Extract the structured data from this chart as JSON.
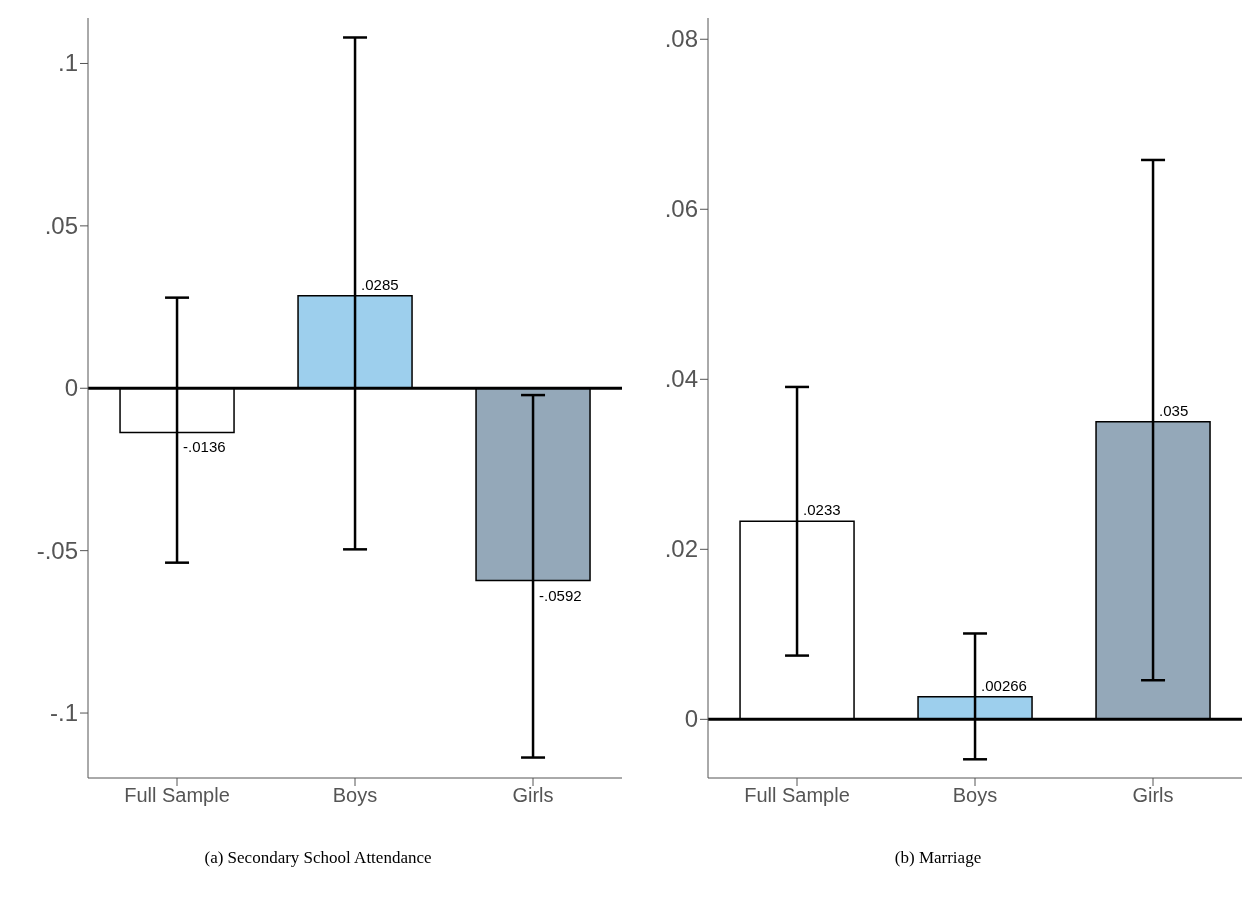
{
  "chart_data": [
    {
      "type": "bar",
      "title": "(a) Secondary School Attendance",
      "categories": [
        "Full Sample",
        "Boys",
        "Girls"
      ],
      "values": [
        -0.0136,
        0.0285,
        -0.0592
      ],
      "colors": [
        "#ffffff",
        "#9dcfed",
        "#94a8b9"
      ],
      "errors": [
        [
          -0.0537,
          0.0279
        ],
        [
          -0.0496,
          0.108
        ],
        [
          -0.1137,
          -0.0021
        ]
      ],
      "value_labels": [
        "-.0136",
        ".0285",
        "-.0592"
      ],
      "ylim": [
        -0.12,
        0.114
      ],
      "yticks": [
        {
          "value": -0.1,
          "label": "-.1"
        },
        {
          "value": -0.05,
          "label": "-.05"
        },
        0,
        {
          "value": 0.05,
          "label": ".05"
        },
        {
          "value": 0.1,
          "label": ".1"
        }
      ],
      "ref_lines": [
        {
          "axis": "y",
          "value": 0,
          "color": "#000000"
        }
      ]
    },
    {
      "type": "bar",
      "title": "(b) Marriage",
      "categories": [
        "Full Sample",
        "Boys",
        "Girls"
      ],
      "values": [
        0.0233,
        0.00266,
        0.035
      ],
      "colors": [
        "#ffffff",
        "#9dcfed",
        "#94a8b9"
      ],
      "errors": [
        [
          0.0075,
          0.0391
        ],
        [
          -0.0047,
          0.0101
        ],
        [
          0.0046,
          0.0658
        ]
      ],
      "value_labels": [
        ".0233",
        ".00266",
        ".035"
      ],
      "ylim": [
        -0.0069,
        0.0825
      ],
      "yticks": [
        0,
        {
          "value": 0.02,
          "label": ".02"
        },
        {
          "value": 0.04,
          "label": ".04"
        },
        {
          "value": 0.06,
          "label": ".06"
        },
        {
          "value": 0.08,
          "label": ".08"
        }
      ],
      "ref_lines": [
        {
          "axis": "y",
          "value": 0,
          "color": "#000000"
        }
      ]
    }
  ]
}
